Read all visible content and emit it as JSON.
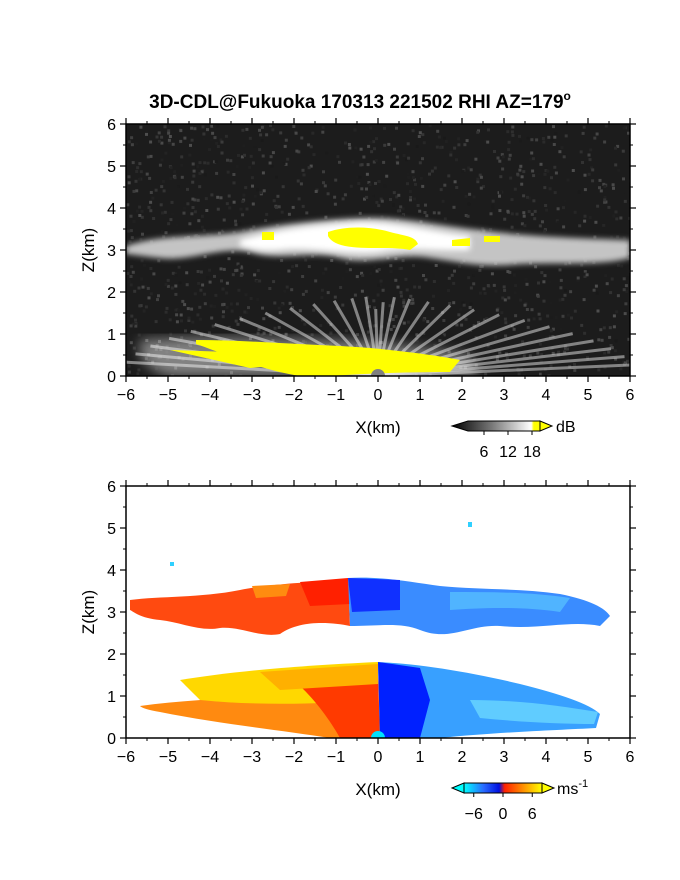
{
  "chart_data": [
    {
      "type": "heatmap",
      "title": "3D-CDL@Fukuoka 170313 221502 RHI AZ=179",
      "title_sup": "o",
      "xlabel": "X(km)",
      "ylabel": "Z(km)",
      "xlim": [
        -6,
        6
      ],
      "ylim": [
        0,
        6
      ],
      "xticks": [
        "-6",
        "-5",
        "-4",
        "-3",
        "-2",
        "-1",
        "0",
        "1",
        "2",
        "3",
        "4",
        "5",
        "6"
      ],
      "yticks": [
        "0",
        "1",
        "2",
        "3",
        "4",
        "5",
        "6"
      ],
      "colorbar": {
        "label": "dB",
        "ticks": [
          "6",
          "12",
          "18"
        ],
        "range": [
          0,
          21
        ],
        "colormap": "greyscale-to-yellow"
      },
      "features": [
        {
          "name": "cloud layer",
          "x": [
            -6,
            6
          ],
          "z": [
            2.4,
            3.6
          ],
          "max_dB_region_x": [
            -1.2,
            1.0
          ]
        },
        {
          "name": "boundary layer beam fan",
          "x": [
            -5.8,
            5.5
          ],
          "z": [
            0,
            1.7
          ],
          "yellow_max_x": [
            -5.5,
            2.0
          ]
        }
      ]
    },
    {
      "type": "heatmap",
      "title": "",
      "xlabel": "X(km)",
      "ylabel": "Z(km)",
      "xlim": [
        -6,
        6
      ],
      "ylim": [
        0,
        6
      ],
      "xticks": [
        "-6",
        "-5",
        "-4",
        "-3",
        "-2",
        "-1",
        "0",
        "1",
        "2",
        "3",
        "4",
        "5",
        "6"
      ],
      "yticks": [
        "0",
        "1",
        "2",
        "3",
        "4",
        "5",
        "6"
      ],
      "colorbar": {
        "label": "ms",
        "label_sup": "-1",
        "ticks": [
          "-6",
          "0",
          "6"
        ],
        "range": [
          -8,
          8
        ],
        "colormap": "blue-red-yellow"
      },
      "features": [
        {
          "name": "cloud layer velocity",
          "x": [
            -5.9,
            6
          ],
          "z": [
            2.6,
            3.8
          ],
          "sign_change_x": -0.7
        },
        {
          "name": "boundary layer velocity",
          "x": [
            -5.8,
            5.9
          ],
          "z": [
            0,
            1.8
          ],
          "sign_change_x": 0.05
        }
      ]
    }
  ],
  "colors": {
    "reflectivity_max": "#ffff00",
    "velocity_low": "#00e0ff",
    "velocity_neg": "#0020ff",
    "velocity_zero": "#ff2000",
    "velocity_high": "#ffff00"
  }
}
